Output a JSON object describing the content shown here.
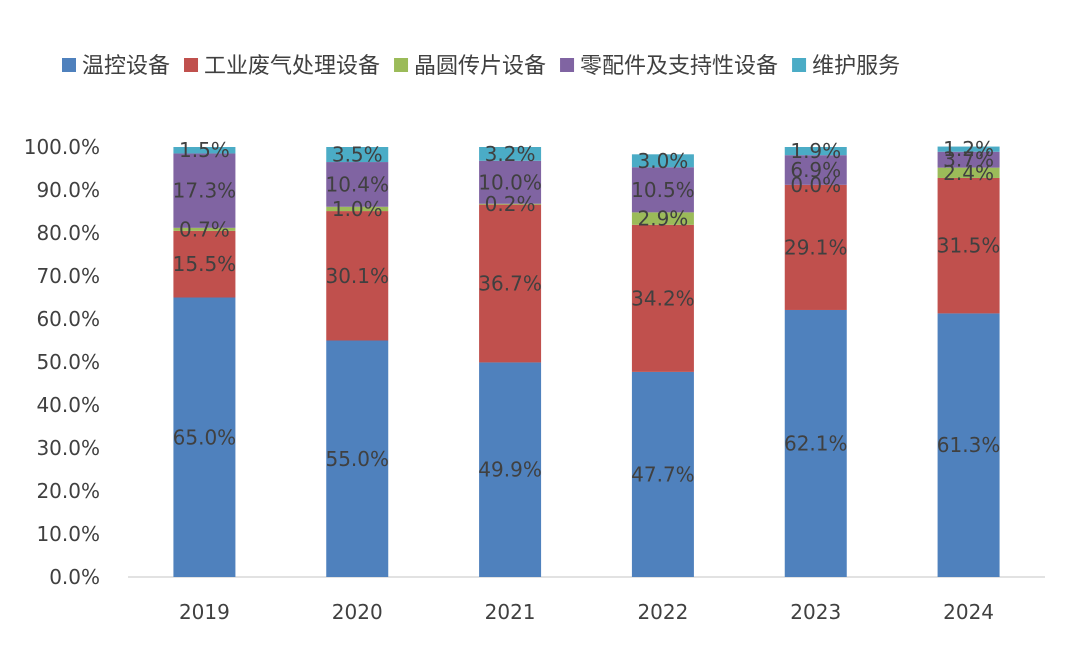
{
  "chart_data": {
    "type": "bar",
    "stacked": true,
    "title": "",
    "xlabel": "",
    "ylabel": "",
    "ylim": [
      0,
      100
    ],
    "ytick_step": 10,
    "ytick_format": "percent_1dp",
    "grid": false,
    "legend_position": "top",
    "categories": [
      "2019",
      "2020",
      "2021",
      "2022",
      "2023",
      "2024"
    ],
    "series": [
      {
        "name": "温控设备",
        "color": "#4F81BD",
        "values": [
          65.0,
          55.0,
          49.9,
          47.7,
          62.1,
          61.3
        ]
      },
      {
        "name": "工业废气处理设备",
        "color": "#C0504D",
        "values": [
          15.5,
          30.1,
          36.7,
          34.2,
          29.1,
          31.5
        ]
      },
      {
        "name": "晶圆传片设备",
        "color": "#9BBB59",
        "values": [
          0.7,
          1.0,
          0.2,
          2.9,
          0.0,
          2.4
        ]
      },
      {
        "name": "零配件及支持性设备",
        "color": "#8064A2",
        "values": [
          17.3,
          10.4,
          10.0,
          10.5,
          6.9,
          3.7
        ]
      },
      {
        "name": "维护服务",
        "color": "#4BACC6",
        "values": [
          1.5,
          3.5,
          3.2,
          3.0,
          1.9,
          1.2
        ]
      }
    ],
    "data_labels": [
      [
        "65.0%",
        "55.0%",
        "49.9%",
        "47.7%",
        "62.1%",
        "61.3%"
      ],
      [
        "15.5%",
        "30.1%",
        "36.7%",
        "34.2%",
        "29.1%",
        "31.5%"
      ],
      [
        "0.7%",
        "1.0%",
        "0.2%",
        "2.9%",
        "0.0%",
        "2.4%"
      ],
      [
        "17.3%",
        "10.4%",
        "10.0%",
        "10.5%",
        "6.9%",
        "3.7%"
      ],
      [
        "1.5%",
        "3.5%",
        "3.2%",
        "3.0%",
        "1.9%",
        "1.2%"
      ]
    ]
  }
}
